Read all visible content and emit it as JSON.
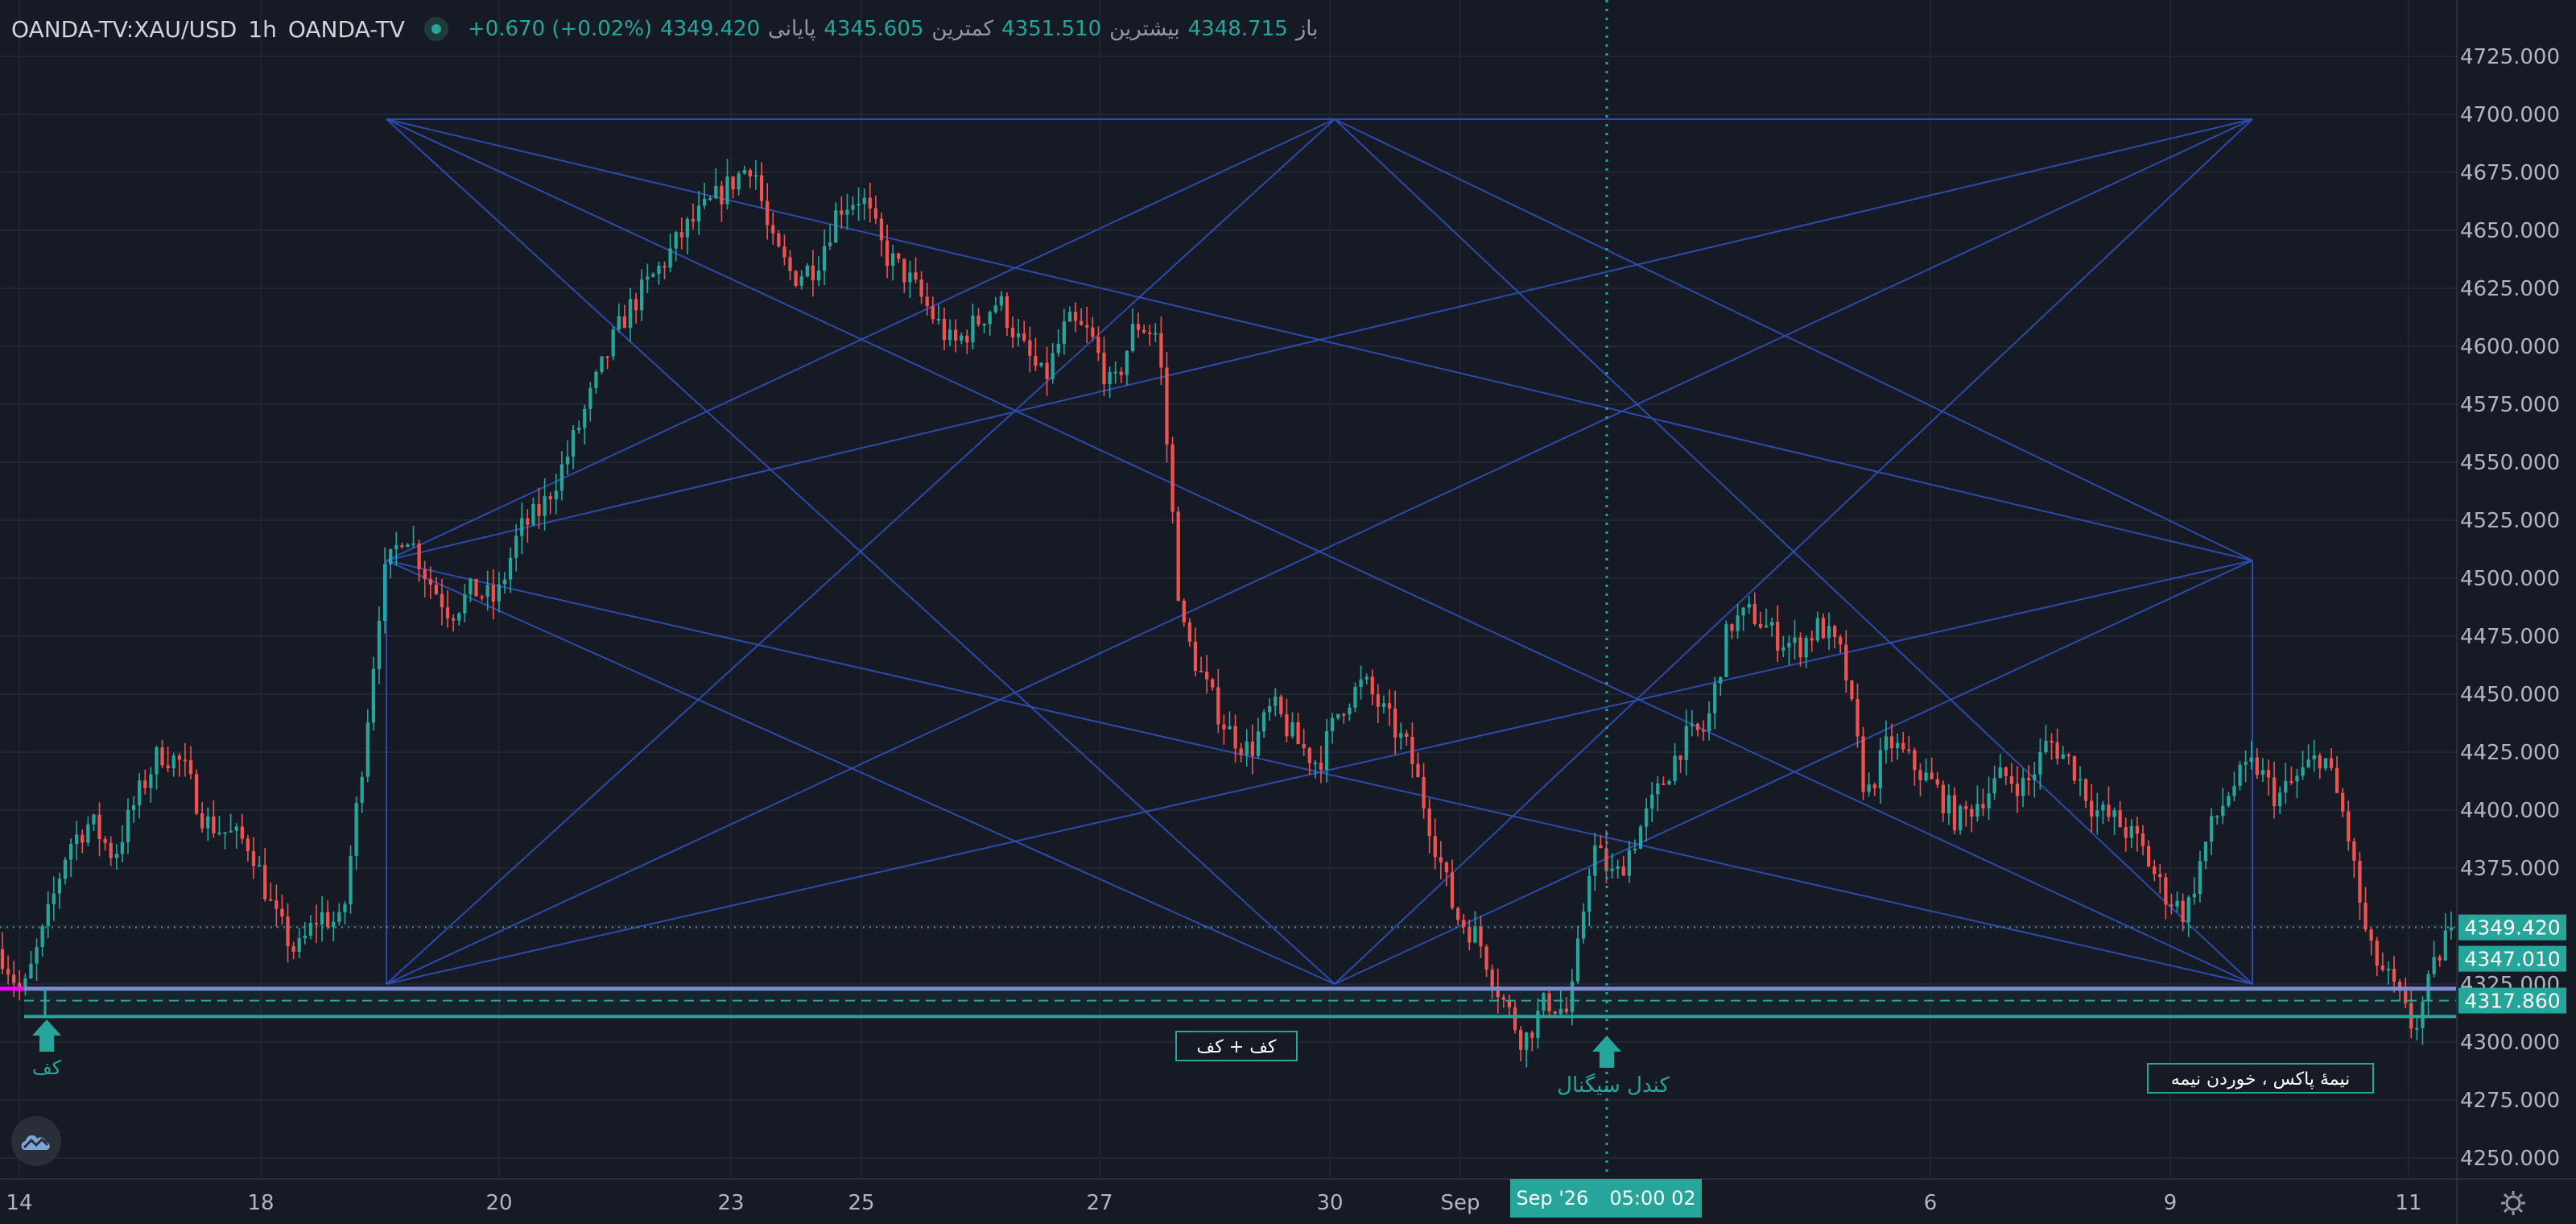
{
  "header": {
    "symbol": "OANDA-TV:XAU/USD",
    "interval": "1h",
    "source": "OANDA-TV",
    "open_label": "باز",
    "open": "4348.715",
    "high_label": "بیشترین",
    "high": "4351.510",
    "low_label": "کمترین",
    "low": "4345.605",
    "close_label": "پایانی",
    "close": "4349.420",
    "change": "+0.670 (+0.02%)"
  },
  "colors": {
    "background": "#161a25",
    "up": "#26a69a",
    "down": "#ef5350",
    "pattern": "#2f50b9",
    "zone": "#26a69a",
    "zone_top": "#7a8ad6",
    "marker_left": "#ff00ff"
  },
  "icons": [
    "tradingview-logo-icon",
    "settings-gear-icon",
    "arrow-up-icon"
  ],
  "time_badge": {
    "date": "Sep '26",
    "time": "05:00 02"
  },
  "annotations": {
    "arrow1_label": "کف",
    "box1": "کف + کف",
    "arrow2_label": "کندل سیگنال",
    "box2": "نیمهٔ پاکس ، خوردن نیمه"
  },
  "chart_data": {
    "type": "candlestick",
    "x_tick_labels": [
      "14",
      "18",
      "20",
      "23",
      "25",
      "27",
      "30",
      "Sep",
      "6",
      "9",
      "11"
    ],
    "y_ticks": [
      4250,
      4275,
      4300,
      4325,
      4350,
      4375,
      4400,
      4425,
      4450,
      4475,
      4500,
      4525,
      4550,
      4575,
      4600,
      4625,
      4650,
      4675,
      4700,
      4725
    ],
    "y_tick_labels": [
      "4250.000",
      "4275.000",
      "4300.000",
      "4325.000",
      "4350.000",
      "4375.000",
      "4400.000",
      "4425.000",
      "4450.000",
      "4475.000",
      "4500.000",
      "4525.000",
      "4550.000",
      "4575.000",
      "4600.000",
      "4625.000",
      "4650.000",
      "4675.000",
      "4700.000",
      "4725.000"
    ],
    "ylim": [
      4240,
      4740
    ],
    "grid": true,
    "price_labels": [
      {
        "value": 4349.42,
        "text": "4349.420"
      },
      {
        "value": 4347.01,
        "text": "4347.010"
      },
      {
        "value": 4317.86,
        "text": "4317.860"
      }
    ],
    "zone": {
      "top": 4323,
      "mid": 4317.86,
      "bottom": 4311
    },
    "last_price": 4349.42,
    "close_path": [
      [
        0,
        4340
      ],
      [
        4,
        4320
      ],
      [
        8,
        4350
      ],
      [
        12,
        4385
      ],
      [
        16,
        4395
      ],
      [
        20,
        4380
      ],
      [
        24,
        4405
      ],
      [
        28,
        4425
      ],
      [
        32,
        4420
      ],
      [
        36,
        4395
      ],
      [
        40,
        4390
      ],
      [
        44,
        4385
      ],
      [
        48,
        4355
      ],
      [
        52,
        4338
      ],
      [
        56,
        4355
      ],
      [
        60,
        4350
      ],
      [
        64,
        4430
      ],
      [
        67,
        4498
      ],
      [
        71,
        4522
      ],
      [
        75,
        4500
      ],
      [
        79,
        4485
      ],
      [
        83,
        4495
      ],
      [
        87,
        4490
      ],
      [
        91,
        4520
      ],
      [
        95,
        4530
      ],
      [
        99,
        4550
      ],
      [
        103,
        4575
      ],
      [
        107,
        4600
      ],
      [
        110,
        4615
      ],
      [
        113,
        4625
      ],
      [
        116,
        4635
      ],
      [
        120,
        4650
      ],
      [
        124,
        4660
      ],
      [
        128,
        4670
      ],
      [
        132,
        4680
      ],
      [
        135,
        4645
      ],
      [
        139,
        4630
      ],
      [
        143,
        4635
      ],
      [
        147,
        4660
      ],
      [
        151,
        4665
      ],
      [
        155,
        4640
      ],
      [
        159,
        4630
      ],
      [
        163,
        4615
      ],
      [
        167,
        4600
      ],
      [
        171,
        4610
      ],
      [
        175,
        4620
      ],
      [
        179,
        4600
      ],
      [
        183,
        4585
      ],
      [
        187,
        4610
      ],
      [
        191,
        4605
      ],
      [
        195,
        4580
      ],
      [
        199,
        4610
      ],
      [
        203,
        4605
      ],
      [
        207,
        4480
      ],
      [
        211,
        4455
      ],
      [
        215,
        4435
      ],
      [
        219,
        4425
      ],
      [
        223,
        4445
      ],
      [
        227,
        4430
      ],
      [
        231,
        4420
      ],
      [
        235,
        4445
      ],
      [
        239,
        4455
      ],
      [
        243,
        4440
      ],
      [
        247,
        4425
      ],
      [
        251,
        4390
      ],
      [
        255,
        4355
      ],
      [
        259,
        4345
      ],
      [
        263,
        4320
      ],
      [
        267,
        4300
      ],
      [
        271,
        4318
      ],
      [
        275,
        4312
      ],
      [
        279,
        4385
      ],
      [
        283,
        4370
      ],
      [
        287,
        4390
      ],
      [
        291,
        4410
      ],
      [
        295,
        4430
      ],
      [
        299,
        4435
      ],
      [
        303,
        4480
      ],
      [
        307,
        4485
      ],
      [
        311,
        4475
      ],
      [
        315,
        4470
      ],
      [
        319,
        4480
      ],
      [
        323,
        4465
      ],
      [
        327,
        4405
      ],
      [
        331,
        4430
      ],
      [
        335,
        4420
      ],
      [
        339,
        4410
      ],
      [
        343,
        4395
      ],
      [
        347,
        4405
      ],
      [
        351,
        4415
      ],
      [
        355,
        4410
      ],
      [
        359,
        4430
      ],
      [
        363,
        4420
      ],
      [
        367,
        4400
      ],
      [
        371,
        4395
      ],
      [
        375,
        4385
      ],
      [
        379,
        4365
      ],
      [
        383,
        4355
      ],
      [
        387,
        4390
      ],
      [
        391,
        4410
      ],
      [
        395,
        4420
      ],
      [
        399,
        4405
      ],
      [
        403,
        4415
      ],
      [
        407,
        4425
      ],
      [
        411,
        4395
      ],
      [
        415,
        4340
      ],
      [
        419,
        4325
      ],
      [
        423,
        4305
      ],
      [
        427,
        4335
      ],
      [
        429,
        4349.42
      ]
    ]
  }
}
